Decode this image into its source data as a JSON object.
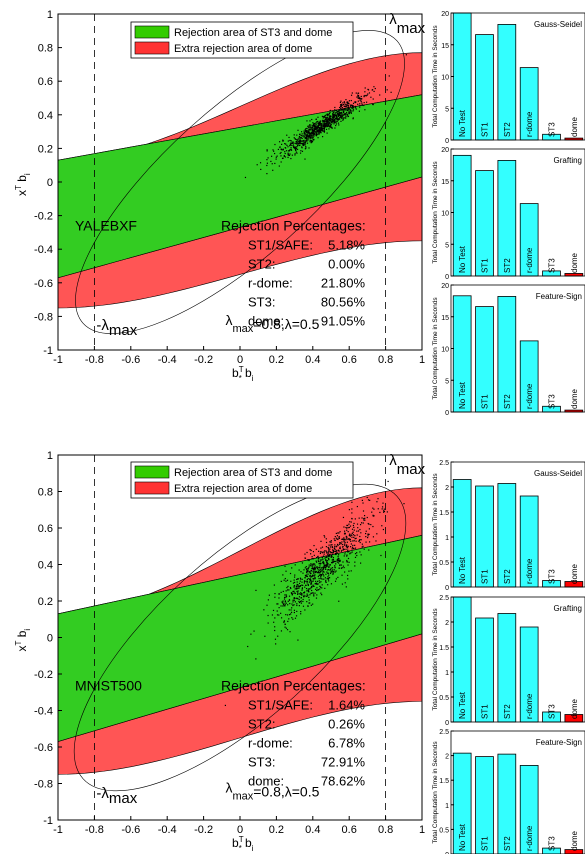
{
  "chart_data": [
    {
      "type": "scatter",
      "title": "",
      "xlabel_main": "b",
      "xlabel_sup": "T",
      "xlabel_sub": "*",
      "xlabel_tail": " b",
      "xlabel_tail_sub": "i",
      "ylabel_main": "x",
      "ylabel_sup": "T",
      "ylabel_tail": " b",
      "ylabel_tail_sub": "i",
      "xlim": [
        -1,
        1
      ],
      "ylim": [
        -1,
        1
      ],
      "xticks": [
        -1,
        -0.8,
        -0.6,
        -0.4,
        -0.2,
        0,
        0.2,
        0.4,
        0.6,
        0.8,
        1
      ],
      "xtick_labels": [
        "-1",
        "-0.8",
        "-0.6",
        "-0.4",
        "-0.2",
        "0",
        "0.2",
        "0.4",
        "0.6",
        "0.8",
        "1"
      ],
      "yticks": [
        -1,
        -0.8,
        -0.6,
        -0.4,
        -0.2,
        0,
        0.2,
        0.4,
        0.6,
        0.8,
        1
      ],
      "ytick_labels": [
        "-1",
        "-0.8",
        "-0.6",
        "-0.4",
        "-0.2",
        "0",
        "0.2",
        "0.4",
        "0.6",
        "0.8",
        "1"
      ],
      "legend": [
        {
          "label": "Rejection area of ST3 and dome",
          "color": "#33cc00"
        },
        {
          "label": "Extra rejection area of dome",
          "color": "#ff3333"
        }
      ],
      "dataset_label": "YALEBXF",
      "rejection_title": "Rejection Percentages:",
      "rejection": [
        {
          "name": "ST1/SAFE:",
          "value": "5.18%"
        },
        {
          "name": "ST2:",
          "value": "0.00%"
        },
        {
          "name": "r-dome:",
          "value": "21.80%"
        },
        {
          "name": "ST3:",
          "value": "80.56%"
        },
        {
          "name": "dome:",
          "value": "91.05%"
        }
      ],
      "lambda_left": {
        "symbol": "-λ",
        "sub": "max"
      },
      "lambda_right": {
        "symbol": "λ",
        "sub": "max"
      },
      "lambda_params": {
        "symbol": "λ",
        "sub": "max",
        "rest": "=0.8,λ=0.5"
      },
      "lambda_max_value": 0.8,
      "green_band": {
        "upper_left": 0.13,
        "upper_right": 0.52,
        "lower_left": -0.57,
        "lower_right": 0.03
      },
      "red_top": {
        "left": 0.13,
        "right": 0.77
      },
      "red_bottom": {
        "left": -0.75,
        "right": -0.35
      },
      "point_cloud": {
        "center": [
          0.45,
          0.34
        ],
        "slope": 0.7,
        "x_spread": 0.28,
        "perp_spread": 0.025
      }
    },
    {
      "type": "scatter",
      "title": "",
      "xlabel_main": "b",
      "xlabel_sup": "T",
      "xlabel_sub": "*",
      "xlabel_tail": " b",
      "xlabel_tail_sub": "i",
      "ylabel_main": "x",
      "ylabel_sup": "T",
      "ylabel_tail": " b",
      "ylabel_tail_sub": "i",
      "xlim": [
        -1,
        1
      ],
      "ylim": [
        -1,
        1
      ],
      "xticks": [
        -1,
        -0.8,
        -0.6,
        -0.4,
        -0.2,
        0,
        0.2,
        0.4,
        0.6,
        0.8,
        1
      ],
      "xtick_labels": [
        "-1",
        "-0.8",
        "-0.6",
        "-0.4",
        "-0.2",
        "0",
        "0.2",
        "0.4",
        "0.6",
        "0.8",
        "1"
      ],
      "yticks": [
        -1,
        -0.8,
        -0.6,
        -0.4,
        -0.2,
        0,
        0.2,
        0.4,
        0.6,
        0.8,
        1
      ],
      "ytick_labels": [
        "-1",
        "-0.8",
        "-0.6",
        "-0.4",
        "-0.2",
        "0",
        "0.2",
        "0.4",
        "0.6",
        "0.8",
        "1"
      ],
      "legend": [
        {
          "label": "Rejection area of ST3 and dome",
          "color": "#33cc00"
        },
        {
          "label": "Extra rejection area of dome",
          "color": "#ff3333"
        }
      ],
      "dataset_label": "MNIST500",
      "rejection_title": "Rejection Percentages:",
      "rejection": [
        {
          "name": "ST1/SAFE:",
          "value": "1.64%"
        },
        {
          "name": "ST2:",
          "value": "0.26%"
        },
        {
          "name": "r-dome:",
          "value": "6.78%"
        },
        {
          "name": "ST3:",
          "value": "72.91%"
        },
        {
          "name": "dome:",
          "value": "78.62%"
        }
      ],
      "lambda_left": {
        "symbol": "-λ",
        "sub": "max"
      },
      "lambda_right": {
        "symbol": "λ",
        "sub": "max"
      },
      "lambda_params": {
        "symbol": "λ",
        "sub": "max",
        "rest": "=0.8,λ=0.5"
      },
      "lambda_max_value": 0.8,
      "green_band": {
        "upper_left": 0.13,
        "upper_right": 0.56,
        "lower_left": -0.57,
        "lower_right": 0.02
      },
      "red_top": {
        "left": 0.13,
        "right": 0.82
      },
      "red_bottom": {
        "left": -0.75,
        "right": -0.35
      },
      "point_cloud": {
        "center": [
          0.45,
          0.38
        ],
        "slope": 0.95,
        "x_spread": 0.3,
        "perp_spread": 0.06
      }
    },
    {
      "type": "bar",
      "title": "Gauss-Seidel",
      "ylabel": "Total Computation Time in Seconds",
      "categories": [
        "No Test",
        "ST1",
        "ST2",
        "r-dome",
        "ST3",
        "dome"
      ],
      "values": [
        20,
        16.6,
        18.2,
        11.4,
        0.9,
        0.3
      ],
      "ylim": [
        0,
        20
      ],
      "yticks": [
        0,
        5,
        10,
        15,
        20
      ],
      "ytick_labels": [
        "0",
        "5",
        "10",
        "15",
        "20"
      ],
      "colors": [
        "#33ffff",
        "#33ffff",
        "#33ffff",
        "#33ffff",
        "#33ffff",
        "#ff0000"
      ]
    },
    {
      "type": "bar",
      "title": "Grafting",
      "ylabel": "Total Computation Time in Seconds",
      "categories": [
        "No Test",
        "ST1",
        "ST2",
        "r-dome",
        "ST3",
        "dome"
      ],
      "values": [
        19,
        16.6,
        18.2,
        11.4,
        0.8,
        0.4
      ],
      "ylim": [
        0,
        20
      ],
      "yticks": [
        0,
        5,
        10,
        15,
        20
      ],
      "ytick_labels": [
        "0",
        "5",
        "10",
        "15",
        "20"
      ],
      "colors": [
        "#33ffff",
        "#33ffff",
        "#33ffff",
        "#33ffff",
        "#33ffff",
        "#ff0000"
      ]
    },
    {
      "type": "bar",
      "title": "Feature-Sign",
      "ylabel": "Total Computation Time in Seconds",
      "categories": [
        "No Test",
        "ST1",
        "ST2",
        "r-dome",
        "ST3",
        "dome"
      ],
      "values": [
        18.3,
        16.6,
        18.2,
        11.2,
        0.9,
        0.3
      ],
      "ylim": [
        0,
        20
      ],
      "yticks": [
        0,
        5,
        10,
        15,
        20
      ],
      "ytick_labels": [
        "0",
        "5",
        "10",
        "15",
        "20"
      ],
      "colors": [
        "#33ffff",
        "#33ffff",
        "#33ffff",
        "#33ffff",
        "#33ffff",
        "#ff0000"
      ]
    },
    {
      "type": "bar",
      "title": "Gauss-Seidel",
      "ylabel": "Total Computation Time in Seconds",
      "categories": [
        "No Test",
        "ST1",
        "ST2",
        "r-dome",
        "ST3",
        "dome"
      ],
      "values": [
        2.15,
        2.02,
        2.07,
        1.82,
        0.13,
        0.11
      ],
      "ylim": [
        0,
        2.5
      ],
      "yticks": [
        0,
        0.5,
        1,
        1.5,
        2,
        2.5
      ],
      "ytick_labels": [
        "0",
        "0.5",
        "1",
        "1.5",
        "2",
        "2.5"
      ],
      "colors": [
        "#33ffff",
        "#33ffff",
        "#33ffff",
        "#33ffff",
        "#33ffff",
        "#ff0000"
      ]
    },
    {
      "type": "bar",
      "title": "Grafting",
      "ylabel": "Total Computation Time in Seconds",
      "categories": [
        "No Test",
        "ST1",
        "ST2",
        "r-dome",
        "ST3",
        "dome"
      ],
      "values": [
        2.5,
        2.08,
        2.17,
        1.9,
        0.2,
        0.15
      ],
      "ylim": [
        0,
        2.5
      ],
      "yticks": [
        0,
        0.5,
        1,
        1.5,
        2,
        2.5
      ],
      "ytick_labels": [
        "0",
        "0.5",
        "1",
        "1.5",
        "2",
        "2.5"
      ],
      "colors": [
        "#33ffff",
        "#33ffff",
        "#33ffff",
        "#33ffff",
        "#33ffff",
        "#ff0000"
      ]
    },
    {
      "type": "bar",
      "title": "Feature-Sign",
      "ylabel": "Total Computation Time in Seconds",
      "categories": [
        "No Test",
        "ST1",
        "ST2",
        "r-dome",
        "ST3",
        "dome"
      ],
      "values": [
        2.05,
        1.98,
        2.03,
        1.8,
        0.12,
        0.09
      ],
      "ylim": [
        0,
        2.5
      ],
      "yticks": [
        0,
        0.5,
        1,
        1.5,
        2,
        2.5
      ],
      "ytick_labels": [
        "0",
        "0.5",
        "1",
        "1.5",
        "2",
        "2.5"
      ],
      "colors": [
        "#33ffff",
        "#33ffff",
        "#33ffff",
        "#33ffff",
        "#33ffff",
        "#ff0000"
      ]
    }
  ]
}
